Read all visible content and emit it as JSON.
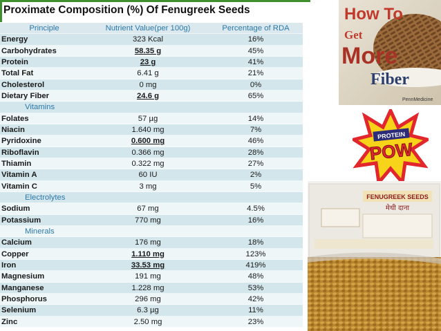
{
  "title": "Proximate Composition (%) Of Fenugreek Seeds",
  "table": {
    "headers": [
      "Principle",
      "Nutrient Value(per 100g)",
      "Percentage of RDA"
    ],
    "rows": [
      {
        "name": "Energy",
        "value": "323 Kcal",
        "rda": "16%",
        "highlight": false
      },
      {
        "name": "Carbohydrates",
        "value": "58.35 g",
        "rda": "45%",
        "highlight": true
      },
      {
        "name": "Protein",
        "value": "23 g",
        "rda": "41%",
        "highlight": true
      },
      {
        "name": "Total Fat",
        "value": "6.41 g",
        "rda": "21%",
        "highlight": false
      },
      {
        "name": "Cholesterol",
        "value": "0 mg",
        "rda": "0%",
        "highlight": false
      },
      {
        "name": "Dietary Fiber",
        "value": "24.6 g",
        "rda": "65%",
        "highlight": true
      },
      {
        "section": "Vitamins"
      },
      {
        "name": "Folates",
        "value": "57 µg",
        "rda": "14%",
        "highlight": false
      },
      {
        "name": "Niacin",
        "value": "1.640 mg",
        "rda": "7%",
        "highlight": false
      },
      {
        "name": "Pyridoxine",
        "value": "0.600 mg",
        "rda": "46%",
        "highlight": true
      },
      {
        "name": "Riboflavin",
        "value": "0.366 mg",
        "rda": "28%",
        "highlight": false
      },
      {
        "name": "Thiamin",
        "value": "0.322 mg",
        "rda": "27%",
        "highlight": false
      },
      {
        "name": "Vitamin A",
        "value": "60 IU",
        "rda": "2%",
        "highlight": false
      },
      {
        "name": "Vitamin C",
        "value": "3 mg",
        "rda": "5%",
        "highlight": false
      },
      {
        "section": "Electrolytes"
      },
      {
        "name": "Sodium",
        "value": "67 mg",
        "rda": "4.5%",
        "highlight": false
      },
      {
        "name": "Potassium",
        "value": "770 mg",
        "rda": "16%",
        "highlight": false
      },
      {
        "section": "Minerals"
      },
      {
        "name": "Calcium",
        "value": "176 mg",
        "rda": "18%",
        "highlight": false
      },
      {
        "name": "Copper",
        "value": "1.110 mg",
        "rda": "123%",
        "highlight": true
      },
      {
        "name": "Iron",
        "value": "33.53 mg",
        "rda": "419%",
        "highlight": true
      },
      {
        "name": "Magnesium",
        "value": "191 mg",
        "rda": "48%",
        "highlight": false
      },
      {
        "name": "Manganese",
        "value": "1.228 mg",
        "rda": "53%",
        "highlight": false
      },
      {
        "name": "Phosphorus",
        "value": "296 mg",
        "rda": "42%",
        "highlight": false
      },
      {
        "name": "Selenium",
        "value": "6.3 µg",
        "rda": "11%",
        "highlight": false
      },
      {
        "name": "Zinc",
        "value": "2.50 mg",
        "rda": "23%",
        "highlight": false
      }
    ]
  },
  "promo": {
    "line1": "How To",
    "line2": "Get",
    "line3": "More",
    "line4": "Fiber",
    "credit": "PennMedicine"
  },
  "pow": {
    "top": "PROTEIN",
    "main": "POW"
  },
  "packet": {
    "label": "FENUGREEK SEEDS",
    "hindi": "मेथी दाना"
  },
  "colors": {
    "header_text": "#2b78a8",
    "row_a": "#d3e6ec",
    "row_b": "#eef6f8",
    "frame": "#3f8f2f"
  }
}
